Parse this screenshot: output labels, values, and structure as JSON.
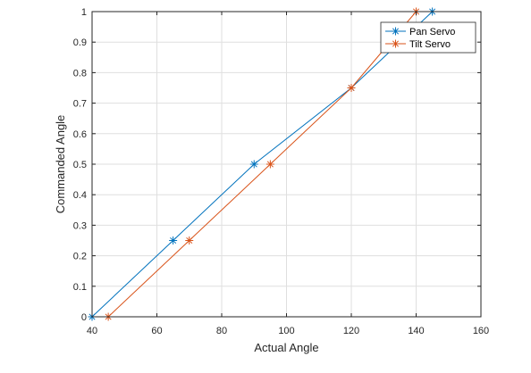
{
  "chart_data": {
    "type": "line",
    "xlabel": "Actual Angle",
    "ylabel": "Commanded Angle",
    "xlim": [
      40,
      160
    ],
    "ylim": [
      0,
      1
    ],
    "xticks": [
      40,
      60,
      80,
      100,
      120,
      140,
      160
    ],
    "yticks": [
      0,
      0.1,
      0.2,
      0.3,
      0.4,
      0.5,
      0.6,
      0.7,
      0.8,
      0.9,
      1
    ],
    "xtick_labels": [
      "40",
      "60",
      "80",
      "100",
      "120",
      "140",
      "160"
    ],
    "ytick_labels": [
      "0",
      "0.1",
      "0.2",
      "0.3",
      "0.4",
      "0.5",
      "0.6",
      "0.7",
      "0.8",
      "0.9",
      "1"
    ],
    "grid": true,
    "legend_position": "top-right",
    "marker": "asterisk",
    "series": [
      {
        "name": "Pan Servo",
        "color": "#0072BD",
        "x": [
          40,
          65,
          90,
          120,
          145
        ],
        "y": [
          0,
          0.25,
          0.5,
          0.75,
          1
        ]
      },
      {
        "name": "Tilt Servo",
        "color": "#D95319",
        "x": [
          45,
          70,
          95,
          120,
          140
        ],
        "y": [
          0,
          0.25,
          0.5,
          0.75,
          1
        ]
      }
    ]
  }
}
